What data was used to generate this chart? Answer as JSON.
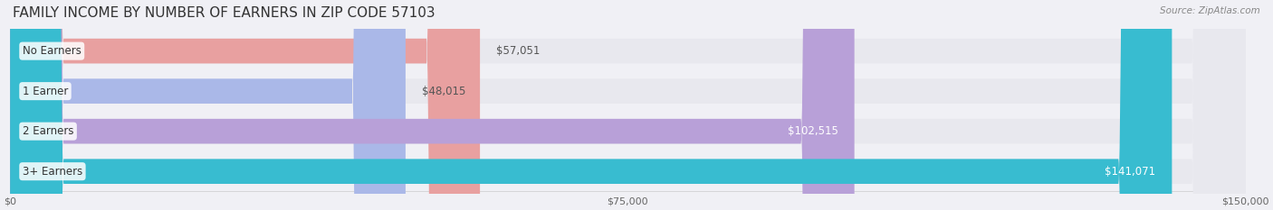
{
  "title": "FAMILY INCOME BY NUMBER OF EARNERS IN ZIP CODE 57103",
  "source": "Source: ZipAtlas.com",
  "categories": [
    "No Earners",
    "1 Earner",
    "2 Earners",
    "3+ Earners"
  ],
  "values": [
    57051,
    48015,
    102515,
    141071
  ],
  "bar_colors": [
    "#e8a0a0",
    "#aab8e8",
    "#b8a0d8",
    "#38bcd0"
  ],
  "label_colors": [
    "#555555",
    "#555555",
    "#ffffff",
    "#ffffff"
  ],
  "bar_bg_color": "#e8e8ee",
  "background_color": "#f0f0f5",
  "xlim": [
    0,
    150000
  ],
  "xticks": [
    0,
    75000,
    150000
  ],
  "xtick_labels": [
    "$0",
    "$75,000",
    "$150,000"
  ],
  "value_labels": [
    "$57,051",
    "$48,015",
    "$102,515",
    "$141,071"
  ],
  "title_fontsize": 11,
  "bar_height": 0.62,
  "label_fontsize": 8.5,
  "value_fontsize": 8.5
}
